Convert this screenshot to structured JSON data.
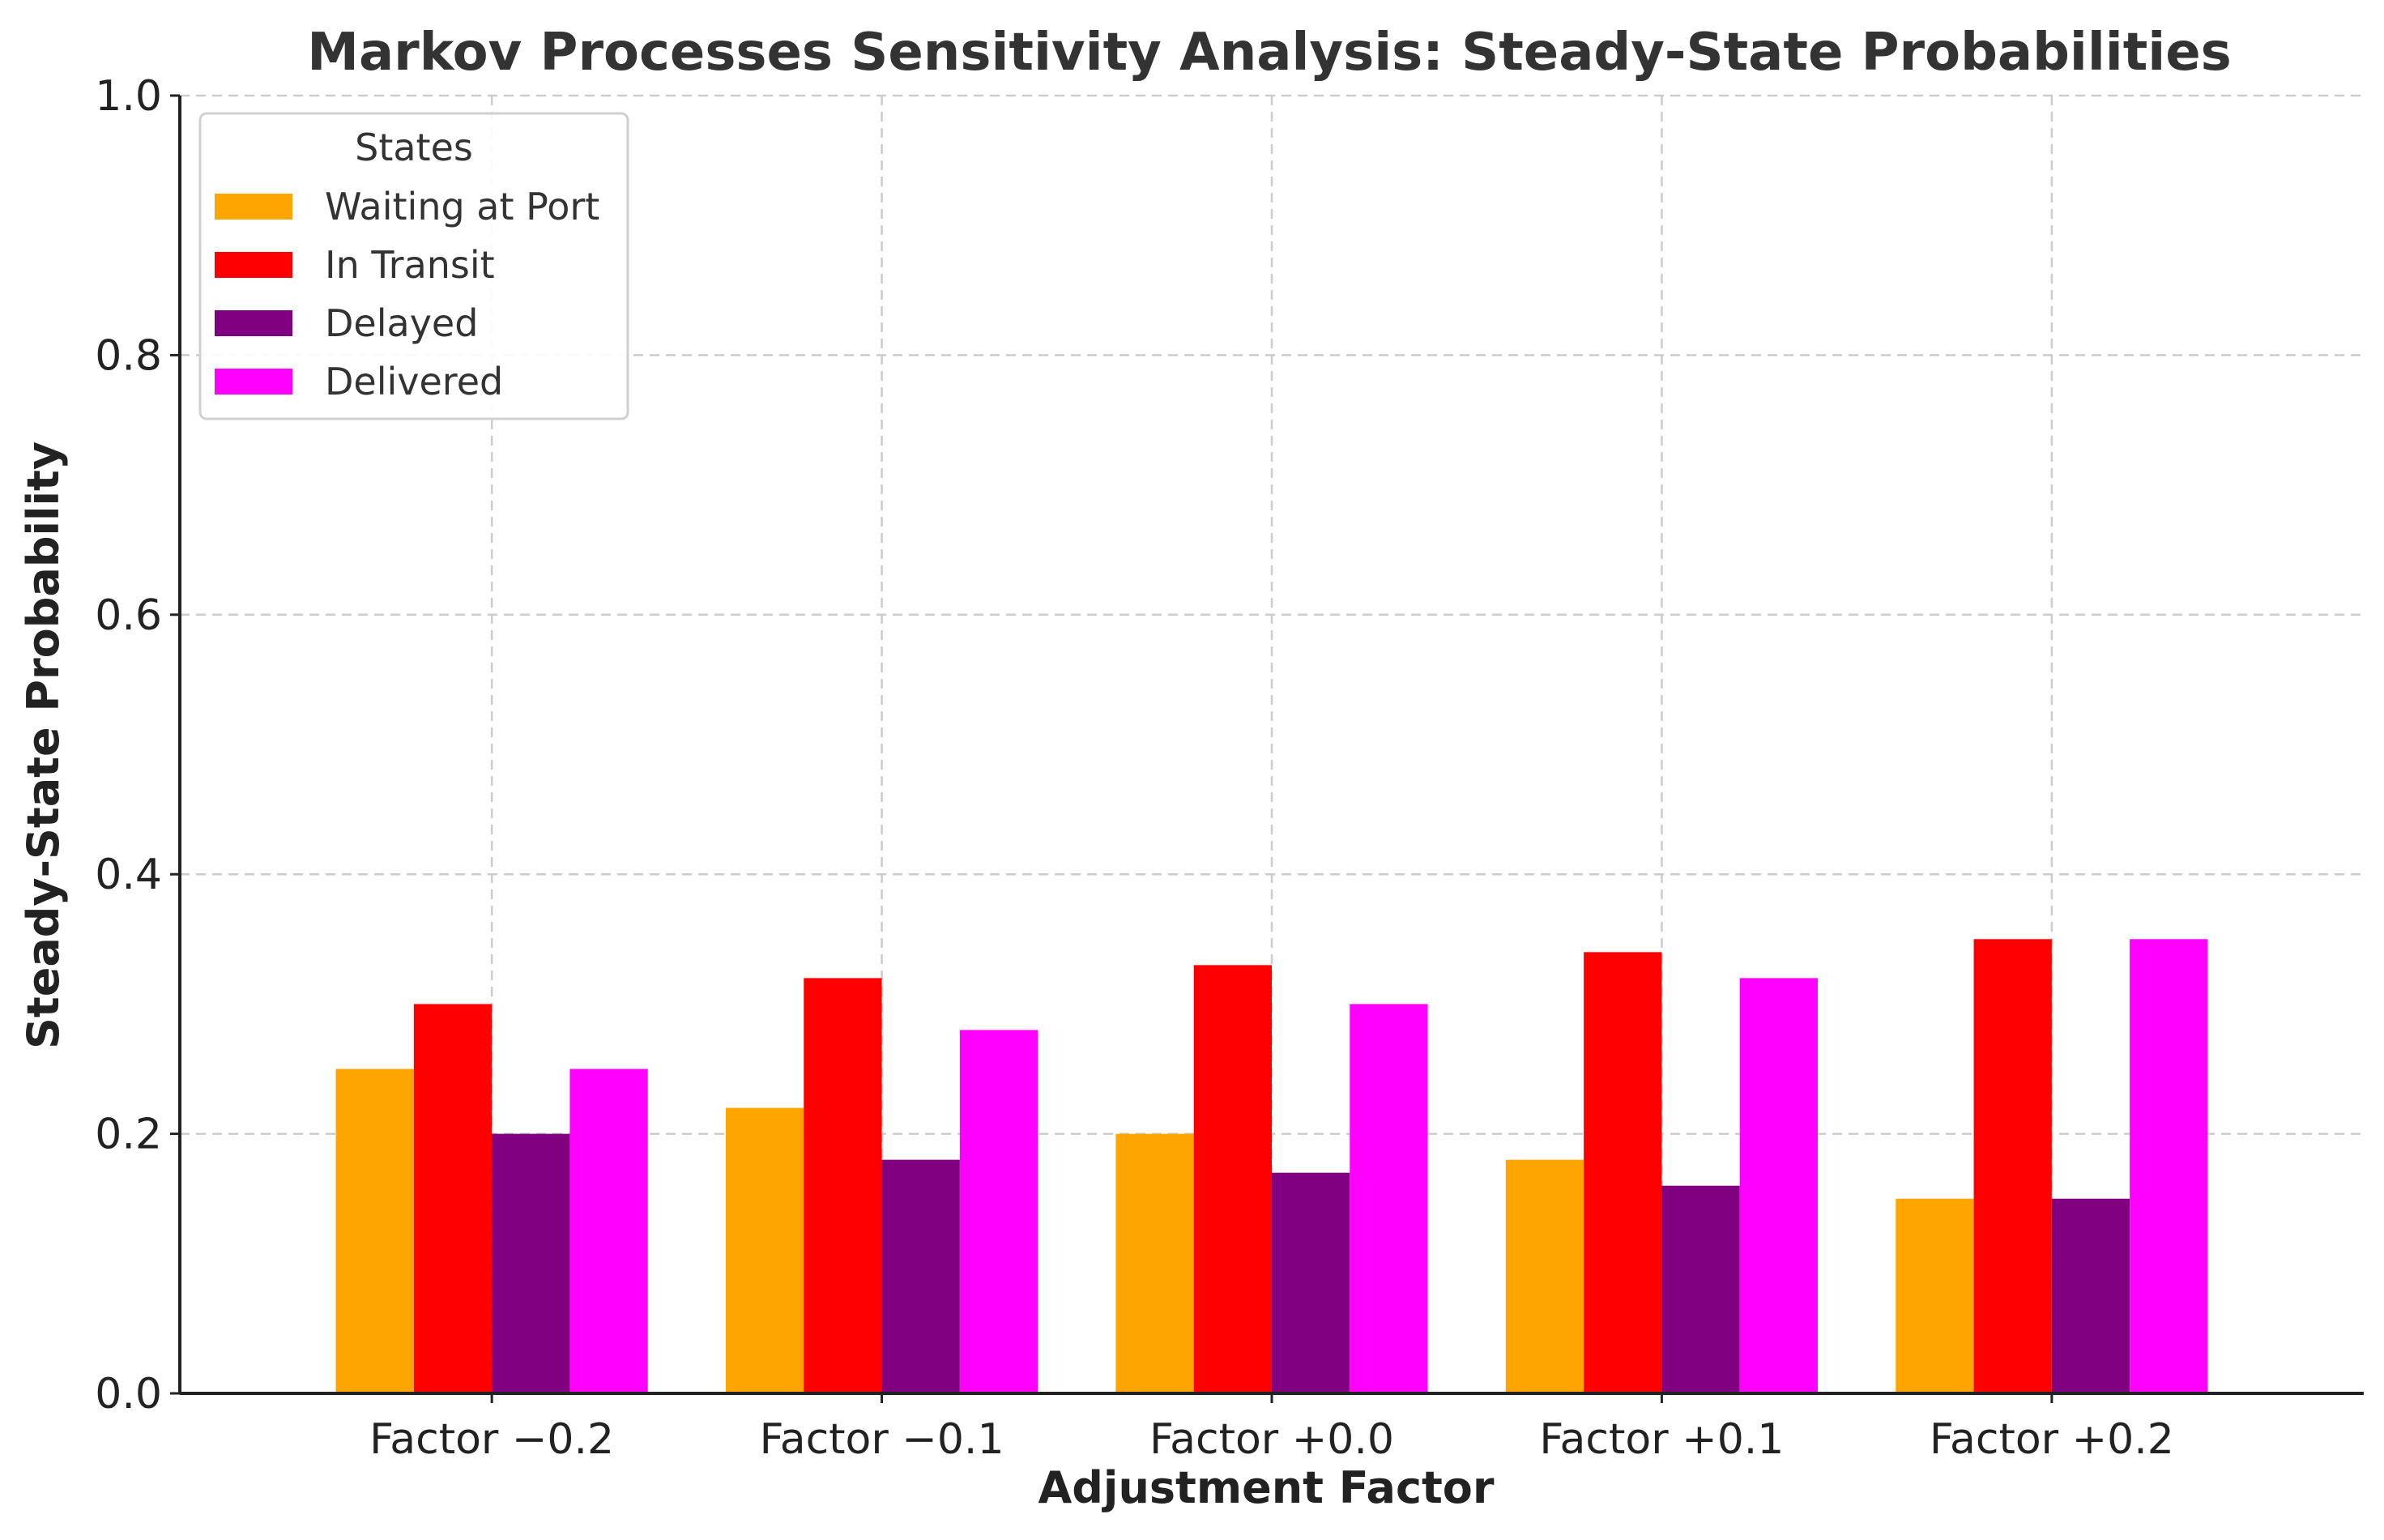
{
  "chart_data": {
    "type": "bar",
    "title": "Markov Processes Sensitivity Analysis: Steady-State Probabilities",
    "xlabel": "Adjustment Factor",
    "ylabel": "Steady-State Probability",
    "ylim": [
      0,
      1.0
    ],
    "yticks": [
      "0.0",
      "0.2",
      "0.4",
      "0.6",
      "0.8",
      "1.0"
    ],
    "ytick_values": [
      0,
      0.2,
      0.4,
      0.6,
      0.8,
      1.0
    ],
    "categories": [
      "Factor −0.2",
      "Factor −0.1",
      "Factor +0.0",
      "Factor +0.1",
      "Factor +0.2"
    ],
    "grid": true,
    "legend": {
      "title": "States",
      "position": "top-left"
    },
    "series": [
      {
        "name": "Waiting at Port",
        "color": "#FFA500",
        "values": [
          0.25,
          0.22,
          0.2,
          0.18,
          0.15
        ]
      },
      {
        "name": "In Transit",
        "color": "#FF0000",
        "values": [
          0.3,
          0.32,
          0.33,
          0.34,
          0.35
        ]
      },
      {
        "name": "Delayed",
        "color": "#800080",
        "values": [
          0.2,
          0.18,
          0.17,
          0.16,
          0.15
        ]
      },
      {
        "name": "Delivered",
        "color": "#FF00FF",
        "values": [
          0.25,
          0.28,
          0.3,
          0.32,
          0.35
        ]
      }
    ]
  }
}
